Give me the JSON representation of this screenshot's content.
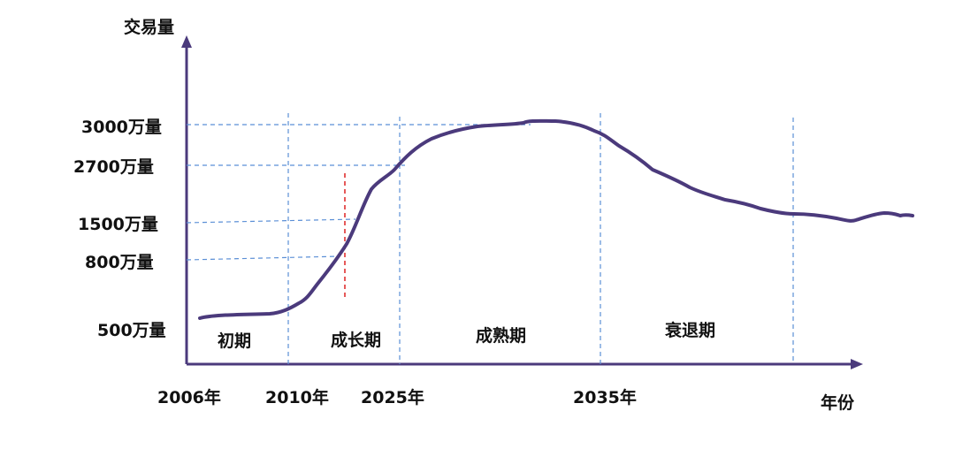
{
  "chart_data": {
    "type": "line",
    "title": "",
    "ylabel": "交易量",
    "xlabel": "年份",
    "x_ticks": [
      "2006年",
      "2010年",
      "2025年",
      "2035年"
    ],
    "y_ticks": [
      "500万量",
      "800万量",
      "1500万量",
      "2700万量",
      "3000万量"
    ],
    "phases": [
      "初期",
      "成长期",
      "成熟期",
      "衰退期"
    ],
    "grid": false,
    "line_color": "#4b3a7c",
    "guide_color": "#5b8fd6",
    "marker_color": "#e03030",
    "axis_color": "#4b3a7c"
  }
}
